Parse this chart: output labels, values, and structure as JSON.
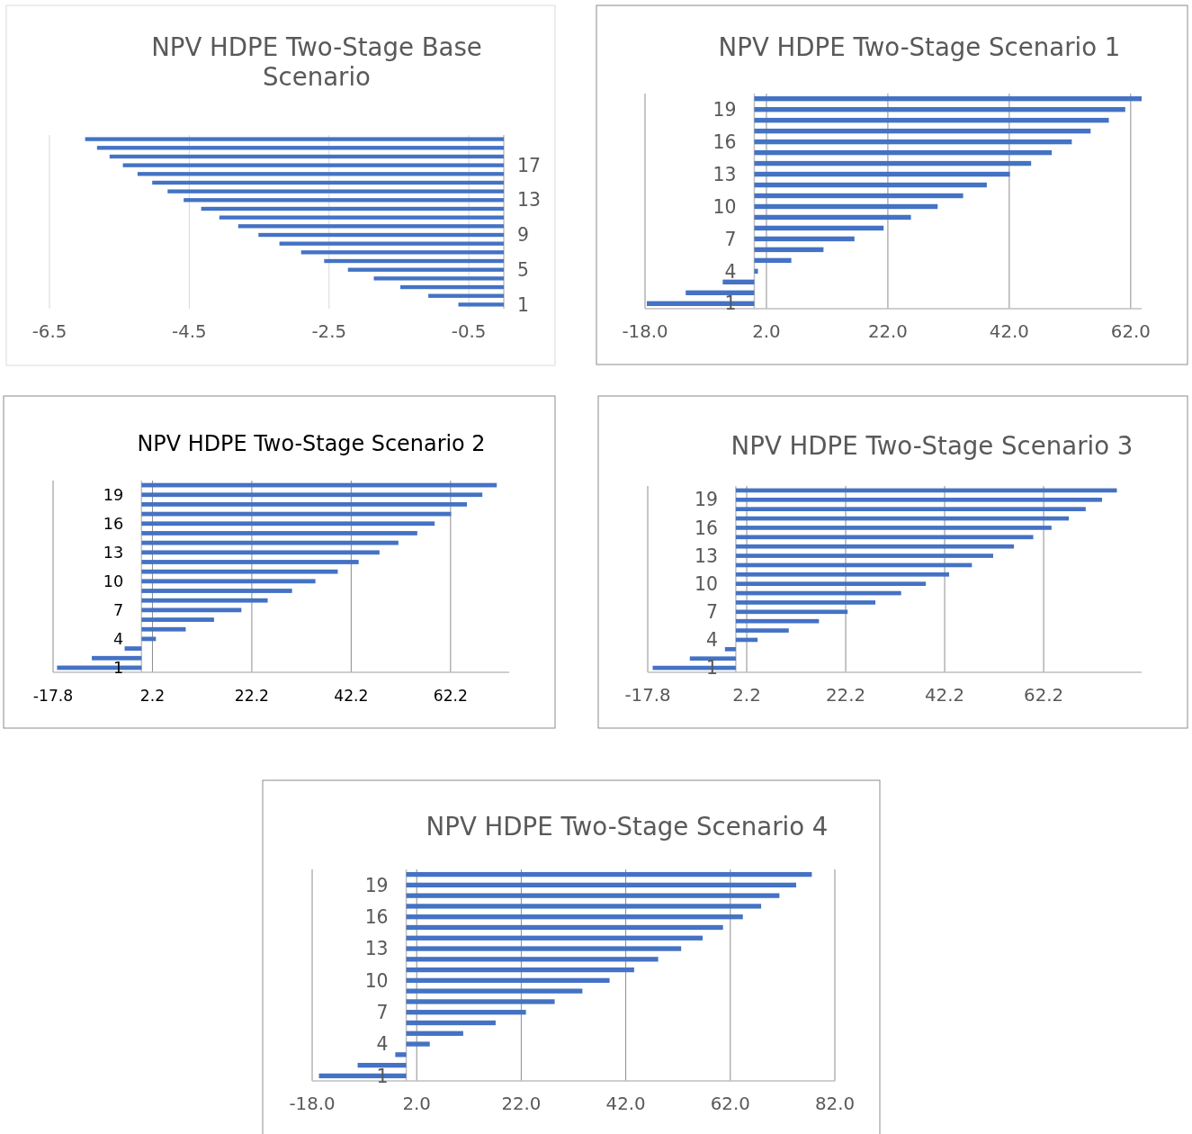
{
  "chart_data": [
    {
      "type": "bar",
      "orientation": "horizontal",
      "title": "NPV HDPE Two-Stage Base Scenario",
      "categories": [
        null,
        null,
        null,
        "17",
        null,
        null,
        null,
        "13",
        null,
        null,
        null,
        "9",
        null,
        null,
        null,
        "5",
        null,
        null,
        null,
        "1"
      ],
      "values": [
        -5.99,
        -5.82,
        -5.64,
        -5.45,
        -5.24,
        -5.03,
        -4.81,
        -4.58,
        -4.33,
        -4.07,
        -3.8,
        -3.51,
        -3.21,
        -2.9,
        -2.57,
        -2.23,
        -1.86,
        -1.48,
        -1.08,
        -0.65
      ],
      "color": "#4472c4",
      "xlim": [
        -6.5,
        0
      ],
      "xticks": [
        -6.5,
        -4.5,
        -2.5,
        -0.5
      ],
      "grid": "x"
    },
    {
      "type": "bar",
      "orientation": "horizontal",
      "title": "NPV HDPE Two-Stage Scenario 1",
      "categories": [
        null,
        "19",
        null,
        null,
        "16",
        null,
        null,
        "13",
        null,
        null,
        "10",
        null,
        null,
        "7",
        null,
        null,
        "4",
        null,
        null,
        "1"
      ],
      "values": [
        63.8,
        61.1,
        58.4,
        55.4,
        52.3,
        49.0,
        45.6,
        42.1,
        38.3,
        34.4,
        30.2,
        25.8,
        21.3,
        16.5,
        11.4,
        6.1,
        0.6,
        -5.2,
        -11.3,
        -17.7
      ],
      "color": "#4472c4",
      "xlim": [
        -18,
        63.8
      ],
      "xticks": [
        {
          "value": -18,
          "label": "-18.0"
        },
        {
          "value": 2,
          "label": "2.0"
        },
        {
          "value": 22,
          "label": "22.0"
        },
        {
          "value": 42,
          "label": "42.0"
        },
        {
          "value": 62,
          "label": "62.0"
        }
      ],
      "grid": "x"
    },
    {
      "type": "bar",
      "orientation": "horizontal",
      "title": "NPV HDPE Two-Stage Scenario 2",
      "categories": [
        null,
        "19",
        null,
        null,
        "16",
        null,
        null,
        "13",
        null,
        null,
        "10",
        null,
        null,
        "7",
        null,
        null,
        "4",
        null,
        null,
        "1"
      ],
      "values": [
        71.5,
        68.6,
        65.5,
        62.3,
        59.0,
        55.5,
        51.7,
        47.9,
        43.7,
        39.5,
        35.0,
        30.3,
        25.4,
        20.1,
        14.6,
        8.9,
        2.9,
        -3.4,
        -10.0,
        -17.0
      ],
      "color": "#4472c4",
      "xlim": [
        -17.8,
        74
      ],
      "xticks": [
        -17.8,
        2.2,
        22.2,
        42.2,
        62.2
      ],
      "grid": "x"
    },
    {
      "type": "bar",
      "orientation": "horizontal",
      "title": "NPV HDPE Two-Stage Scenario 3",
      "categories": [
        null,
        "19",
        null,
        null,
        "16",
        null,
        null,
        "13",
        null,
        null,
        "10",
        null,
        null,
        "7",
        null,
        null,
        "4",
        null,
        null,
        "1"
      ],
      "values": [
        77.0,
        74.0,
        70.7,
        67.3,
        63.8,
        60.1,
        56.2,
        52.0,
        47.7,
        43.1,
        38.4,
        33.4,
        28.2,
        22.6,
        16.8,
        10.7,
        4.4,
        -2.2,
        -9.3,
        -16.8
      ],
      "color": "#4472c4",
      "xlim": [
        -17.8,
        82
      ],
      "xticks": [
        -17.8,
        2.2,
        22.2,
        42.2,
        62.2
      ],
      "grid": "x"
    },
    {
      "type": "bar",
      "orientation": "horizontal",
      "title": "NPV HDPE Two-Stage Scenario 4",
      "categories": [
        null,
        "19",
        null,
        null,
        "16",
        null,
        null,
        "13",
        null,
        null,
        "10",
        null,
        null,
        "7",
        null,
        null,
        "4",
        null,
        null,
        "1"
      ],
      "values": [
        77.6,
        74.6,
        71.4,
        67.9,
        64.4,
        60.6,
        56.7,
        52.6,
        48.2,
        43.6,
        38.9,
        33.7,
        28.4,
        22.9,
        17.1,
        10.9,
        4.5,
        -2.1,
        -9.3,
        -16.7
      ],
      "color": "#4472c4",
      "xlim": [
        -18,
        82
      ],
      "xticks": [
        {
          "value": -18,
          "label": "-18.0"
        },
        {
          "value": 2,
          "label": "2.0"
        },
        {
          "value": 22,
          "label": "22.0"
        },
        {
          "value": 42,
          "label": "42.0"
        },
        {
          "value": 62,
          "label": "62.0"
        },
        {
          "value": 82,
          "label": "82.0"
        }
      ],
      "grid": "x"
    }
  ]
}
